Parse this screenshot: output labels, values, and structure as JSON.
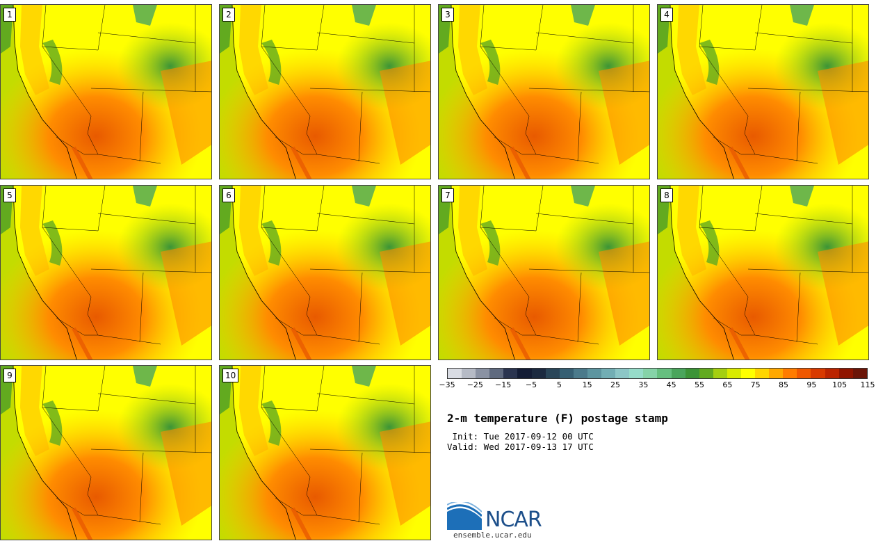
{
  "panels": [
    {
      "member": "1"
    },
    {
      "member": "2"
    },
    {
      "member": "3"
    },
    {
      "member": "4"
    },
    {
      "member": "5"
    },
    {
      "member": "6"
    },
    {
      "member": "7"
    },
    {
      "member": "8"
    },
    {
      "member": "9"
    },
    {
      "member": "10"
    }
  ],
  "colorbar": {
    "colors": [
      "#d9dce3",
      "#b6bbc6",
      "#8a92a3",
      "#5f6a7f",
      "#2b3550",
      "#141d36",
      "#1c2a40",
      "#2a4659",
      "#365f73",
      "#4b7a8b",
      "#5d95a0",
      "#72aeb4",
      "#8cc6c6",
      "#96dcc9",
      "#86d3a8",
      "#66bf7f",
      "#4aa55c",
      "#3c9437",
      "#62aa1f",
      "#a4cf11",
      "#d9ea00",
      "#ffff00",
      "#ffd500",
      "#ffa800",
      "#ff7c00",
      "#f05800",
      "#d83a00",
      "#bb2400",
      "#901500",
      "#6b1508"
    ],
    "ticks": [
      "−35",
      "−25",
      "−15",
      "−5",
      "5",
      "15",
      "25",
      "35",
      "45",
      "55",
      "65",
      "75",
      "85",
      "95",
      "105",
      "115"
    ]
  },
  "title": "2-m temperature (F) postage stamp",
  "init": " Init: Tue 2017-09-12 00 UTC",
  "valid": "Valid: Wed 2017-09-13 17 UTC",
  "logo": {
    "name": "NCAR",
    "url": "ensemble.ucar.edu"
  }
}
